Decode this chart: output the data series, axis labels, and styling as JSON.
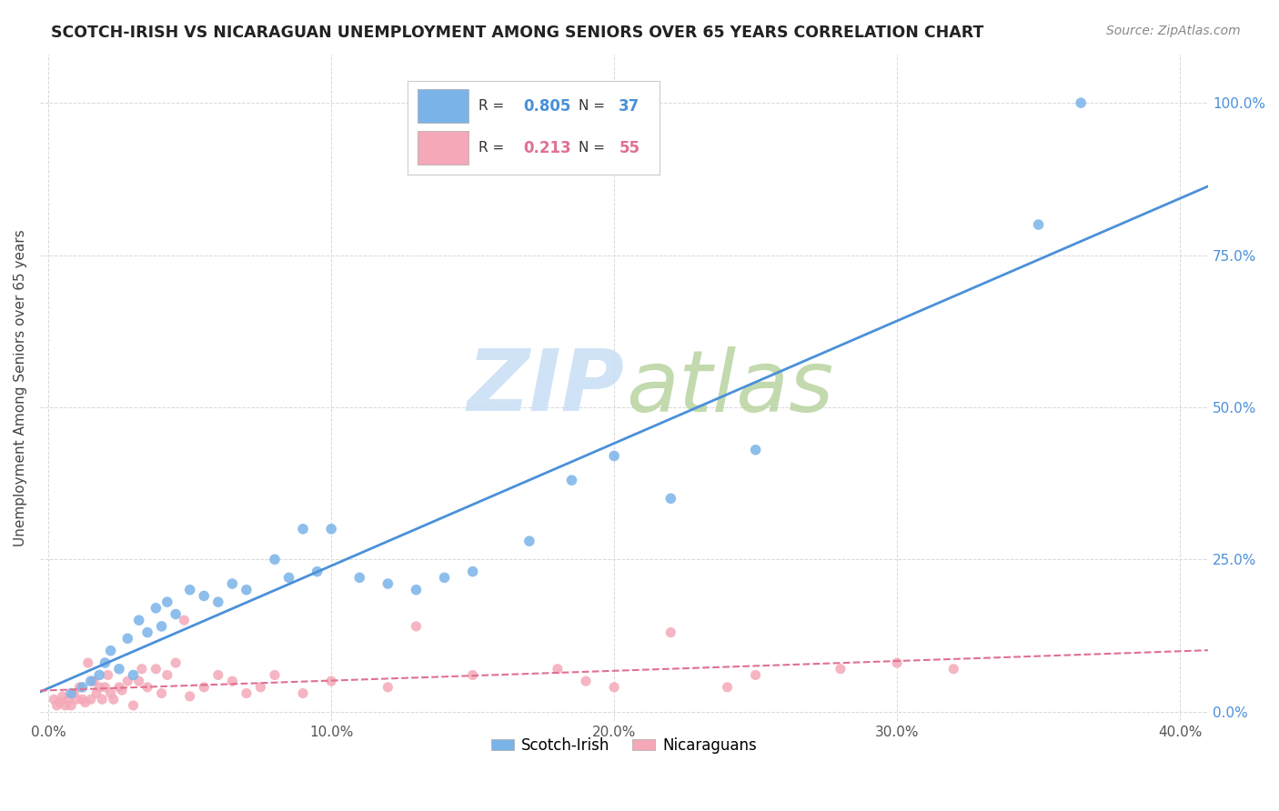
{
  "title": "SCOTCH-IRISH VS NICARAGUAN UNEMPLOYMENT AMONG SENIORS OVER 65 YEARS CORRELATION CHART",
  "source": "Source: ZipAtlas.com",
  "ylabel": "Unemployment Among Seniors over 65 years",
  "scotch_irish_color": "#7ab3e8",
  "nicaraguan_color": "#f4a8b8",
  "scotch_irish_line_color": "#4a90d9",
  "nicaraguan_line_color": "#e07090",
  "scotch_irish_R": 0.805,
  "scotch_irish_N": 37,
  "nicaraguan_R": 0.213,
  "nicaraguan_N": 55,
  "xmin": -0.3,
  "xmax": 41.0,
  "ymin": -1.5,
  "ymax": 108,
  "xticks": [
    0,
    10,
    20,
    30,
    40
  ],
  "yticks": [
    0,
    25,
    50,
    75,
    100
  ],
  "scotch_irish_x": [
    0.8,
    1.2,
    1.5,
    1.8,
    2.0,
    2.2,
    2.5,
    2.8,
    3.0,
    3.2,
    3.5,
    3.8,
    4.0,
    4.2,
    4.5,
    5.0,
    5.5,
    6.0,
    6.5,
    7.0,
    8.0,
    8.5,
    9.0,
    9.5,
    10.0,
    11.0,
    12.0,
    13.0,
    14.0,
    15.0,
    17.0,
    18.5,
    20.0,
    22.0,
    25.0,
    35.0,
    36.5
  ],
  "scotch_irish_y": [
    3,
    4,
    5,
    6,
    8,
    10,
    7,
    12,
    6,
    15,
    13,
    17,
    14,
    18,
    16,
    20,
    19,
    18,
    21,
    20,
    25,
    22,
    30,
    23,
    30,
    22,
    21,
    20,
    22,
    23,
    28,
    38,
    42,
    35,
    43,
    80,
    100
  ],
  "nicaraguan_x": [
    0.2,
    0.3,
    0.4,
    0.5,
    0.6,
    0.7,
    0.8,
    0.9,
    1.0,
    1.1,
    1.2,
    1.3,
    1.5,
    1.6,
    1.7,
    1.8,
    1.9,
    2.0,
    2.1,
    2.2,
    2.5,
    2.6,
    2.8,
    3.0,
    3.2,
    3.5,
    3.8,
    4.0,
    4.2,
    4.5,
    5.0,
    5.5,
    6.0,
    6.5,
    7.0,
    7.5,
    8.0,
    9.0,
    10.0,
    12.0,
    13.0,
    15.0,
    18.0,
    19.0,
    20.0,
    22.0,
    24.0,
    25.0,
    28.0,
    30.0,
    32.0,
    1.4,
    2.3,
    3.3,
    4.8
  ],
  "nicaraguan_y": [
    2,
    1,
    1.5,
    2.5,
    1,
    2,
    1,
    3,
    2,
    4,
    2,
    1.5,
    2,
    5,
    3,
    4,
    2,
    4,
    6,
    3,
    4,
    3.5,
    5,
    1,
    5,
    4,
    7,
    3,
    6,
    8,
    2.5,
    4,
    6,
    5,
    3,
    4,
    6,
    3,
    5,
    4,
    14,
    6,
    7,
    5,
    4,
    13,
    4,
    6,
    7,
    8,
    7,
    8,
    2,
    7,
    15
  ]
}
